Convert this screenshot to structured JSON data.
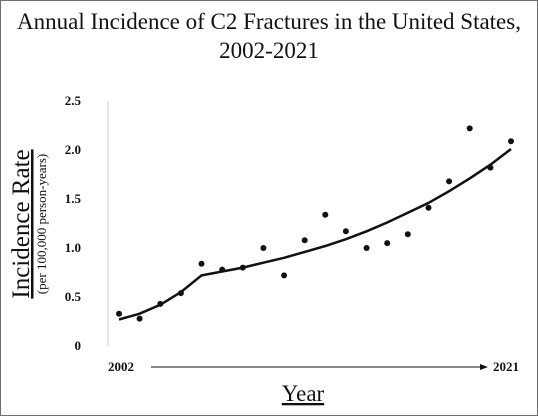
{
  "chart_data": {
    "type": "scatter",
    "title_line1": "Annual Incidence of C2 Fractures in the United States,",
    "title_line2": "2002-2021",
    "ylabel": "Incidence Rate",
    "ylabel_sub": "(per 100,000 person-years)",
    "xlabel": "Year",
    "x_start_label": "2002",
    "x_end_label": "2021",
    "ylim": [
      0,
      2.5
    ],
    "y_ticks": [
      {
        "value": 0,
        "label": "0"
      },
      {
        "value": 0.5,
        "label": "0.5"
      },
      {
        "value": 1.0,
        "label": "1.0"
      },
      {
        "value": 1.5,
        "label": "1.5"
      },
      {
        "value": 2.0,
        "label": "2.0"
      },
      {
        "value": 2.5,
        "label": "2.5"
      }
    ],
    "grid": false,
    "x": [
      2002,
      2003,
      2004,
      2005,
      2006,
      2007,
      2008,
      2009,
      2010,
      2011,
      2012,
      2013,
      2014,
      2015,
      2016,
      2017,
      2018,
      2019,
      2020,
      2021
    ],
    "values": [
      0.33,
      0.28,
      0.43,
      0.54,
      0.84,
      0.78,
      0.8,
      1.0,
      0.72,
      1.08,
      1.34,
      1.17,
      1.0,
      1.05,
      1.14,
      1.41,
      1.68,
      2.22,
      1.82,
      2.09
    ],
    "trend": {
      "x": [
        2002,
        2003,
        2004,
        2005,
        2006,
        2007,
        2008,
        2009,
        2010,
        2011,
        2012,
        2013,
        2014,
        2015,
        2016,
        2017,
        2018,
        2019,
        2020,
        2021
      ],
      "values": [
        0.27,
        0.33,
        0.42,
        0.55,
        0.72,
        0.76,
        0.8,
        0.85,
        0.9,
        0.96,
        1.02,
        1.09,
        1.17,
        1.26,
        1.36,
        1.46,
        1.58,
        1.71,
        1.85,
        2.01
      ]
    },
    "colors": {
      "points": "#111111",
      "line": "#111111",
      "axis": "#cfcfcf"
    }
  }
}
